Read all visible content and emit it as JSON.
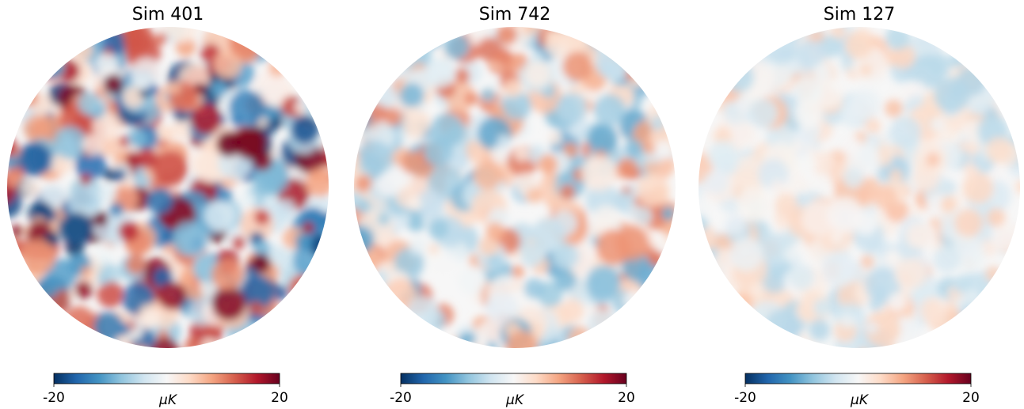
{
  "chart_data": [
    {
      "type": "map",
      "title": "Sim 401",
      "colorbar": {
        "label": "μK",
        "lim": [
          -20,
          20
        ],
        "ticks": [
          -20,
          20
        ]
      },
      "cmap": [
        "#053061",
        "#2166ac",
        "#4393c3",
        "#92c5de",
        "#d1e5f0",
        "#f7f7f7",
        "#fddbc7",
        "#f4a582",
        "#d6604d",
        "#b2182b",
        "#67001f"
      ]
    },
    {
      "type": "map",
      "title": "Sim 742",
      "colorbar": {
        "label": "μK",
        "lim": [
          -20,
          20
        ],
        "ticks": [
          -20,
          20
        ]
      },
      "cmap": [
        "#053061",
        "#2166ac",
        "#4393c3",
        "#92c5de",
        "#d1e5f0",
        "#f7f7f7",
        "#fddbc7",
        "#f4a582",
        "#d6604d",
        "#b2182b",
        "#67001f"
      ]
    },
    {
      "type": "map",
      "title": "Sim 127",
      "colorbar": {
        "label": "μK",
        "lim": [
          -20,
          20
        ],
        "ticks": [
          -20,
          20
        ]
      },
      "cmap": [
        "#053061",
        "#2166ac",
        "#4393c3",
        "#92c5de",
        "#d1e5f0",
        "#f7f7f7",
        "#fddbc7",
        "#f4a582",
        "#d6604d",
        "#b2182b",
        "#67001f"
      ]
    }
  ]
}
